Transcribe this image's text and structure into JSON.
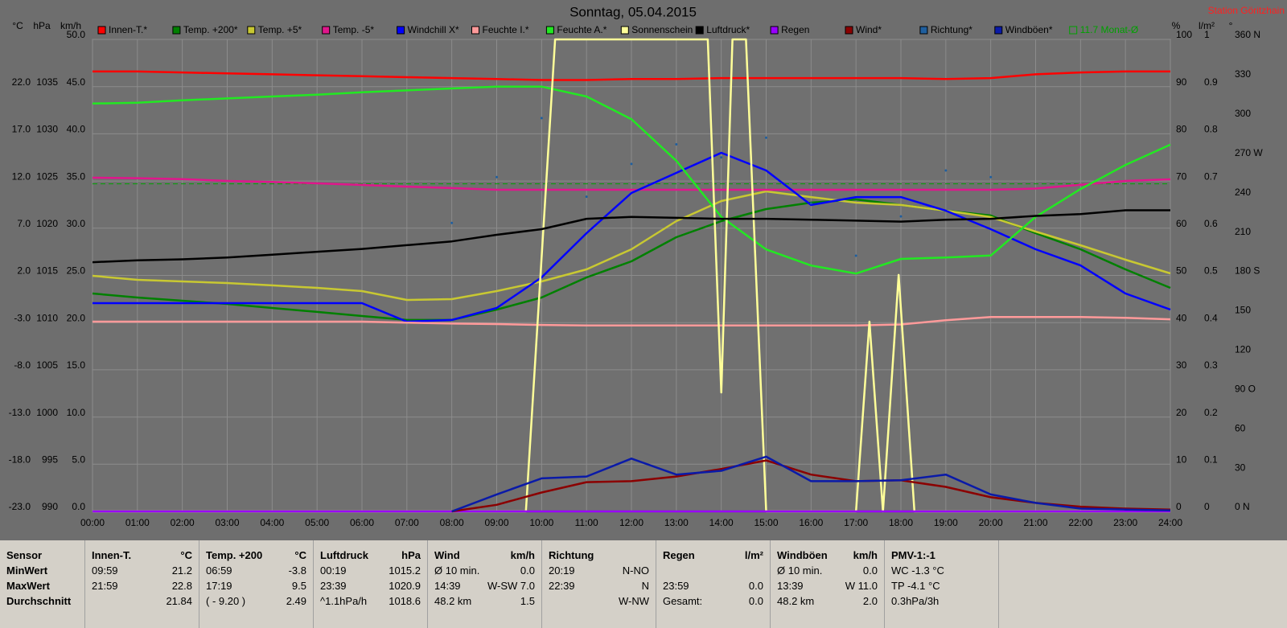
{
  "chart_data": {
    "type": "line",
    "title": "Sonntag, 05.04.2015",
    "station": "Station Göritzhain",
    "grid": true,
    "x": [
      0,
      1,
      2,
      3,
      4,
      5,
      6,
      7,
      8,
      9,
      10,
      11,
      12,
      13,
      14,
      15,
      16,
      17,
      18,
      19,
      20,
      21,
      22,
      23,
      24
    ],
    "xlim": [
      0,
      24
    ],
    "xticks": [
      {
        "value": 0,
        "label": "00:00"
      },
      {
        "value": 1,
        "label": "01:00"
      },
      {
        "value": 2,
        "label": "02:00"
      },
      {
        "value": 3,
        "label": "03:00"
      },
      {
        "value": 4,
        "label": "04:00"
      },
      {
        "value": 5,
        "label": "05:00"
      },
      {
        "value": 6,
        "label": "06:00"
      },
      {
        "value": 7,
        "label": "07:00"
      },
      {
        "value": 8,
        "label": "08:00"
      },
      {
        "value": 9,
        "label": "09:00"
      },
      {
        "value": 10,
        "label": "10:00"
      },
      {
        "value": 11,
        "label": "11:00"
      },
      {
        "value": 12,
        "label": "12:00"
      },
      {
        "value": 13,
        "label": "13:00"
      },
      {
        "value": 14,
        "label": "14:00"
      },
      {
        "value": 15,
        "label": "15:00"
      },
      {
        "value": 16,
        "label": "16:00"
      },
      {
        "value": 17,
        "label": "17:00"
      },
      {
        "value": 18,
        "label": "18:00"
      },
      {
        "value": 19,
        "label": "19:00"
      },
      {
        "value": 20,
        "label": "20:00"
      },
      {
        "value": 21,
        "label": "21:00"
      },
      {
        "value": 22,
        "label": "22:00"
      },
      {
        "value": 23,
        "label": "23:00"
      },
      {
        "value": 24,
        "label": "24:00"
      }
    ],
    "axes": [
      {
        "unit": "°C",
        "ylim": [
          -23,
          27
        ],
        "yticks": [
          {
            "value": -23,
            "label": "-23.0"
          },
          {
            "value": -18,
            "label": "-18.0"
          },
          {
            "value": -13,
            "label": "-13.0"
          },
          {
            "value": -8,
            "label": "-8.0"
          },
          {
            "value": -3,
            "label": "-3.0"
          },
          {
            "value": 2,
            "label": "2.0"
          },
          {
            "value": 7,
            "label": "7.0"
          },
          {
            "value": 12,
            "label": "12.0"
          },
          {
            "value": 17,
            "label": "17.0"
          },
          {
            "value": 22,
            "label": "22.0"
          }
        ]
      },
      {
        "unit": "hPa",
        "ylim": [
          990,
          1040
        ],
        "yticks": [
          990,
          995,
          1000,
          1005,
          1010,
          1015,
          1020,
          1025,
          1030,
          1035
        ]
      },
      {
        "unit": "km/h",
        "ylim": [
          0,
          50
        ],
        "yticks": [
          {
            "value": 0,
            "label": "0.0"
          },
          {
            "value": 5,
            "label": "5.0"
          },
          {
            "value": 10,
            "label": "10.0"
          },
          {
            "value": 15,
            "label": "15.0"
          },
          {
            "value": 20,
            "label": "20.0"
          },
          {
            "value": 25,
            "label": "25.0"
          },
          {
            "value": 30,
            "label": "30.0"
          },
          {
            "value": 35,
            "label": "35.0"
          },
          {
            "value": 40,
            "label": "40.0"
          },
          {
            "value": 45,
            "label": "45.0"
          },
          {
            "value": 50,
            "label": "50.0"
          }
        ]
      },
      {
        "unit": "%",
        "ylim": [
          0,
          100
        ],
        "yticks": [
          0,
          10,
          20,
          30,
          40,
          50,
          60,
          70,
          80,
          90,
          100
        ]
      },
      {
        "unit": "l/m²",
        "ylim": [
          0,
          1
        ],
        "yticks": [
          0,
          0.1,
          0.2,
          0.3,
          0.4,
          0.5,
          0.6,
          0.7,
          0.8,
          0.9,
          1
        ]
      },
      {
        "unit": "°",
        "ylim": [
          0,
          360
        ],
        "yticks": [
          {
            "value": 0,
            "label": "0  N"
          },
          30,
          60,
          {
            "value": 90,
            "label": "90  O"
          },
          120,
          150,
          {
            "value": 180,
            "label": "180  S"
          },
          210,
          240,
          {
            "value": 270,
            "label": "270  W"
          },
          300,
          330,
          {
            "value": 360,
            "label": "360  N"
          }
        ]
      }
    ],
    "series": [
      {
        "name": "Innen-T.*",
        "color": "#ff0000",
        "axis": 0,
        "values": [
          23.6,
          23.6,
          23.5,
          23.4,
          23.3,
          23.2,
          23.1,
          23.0,
          22.9,
          22.8,
          22.7,
          22.7,
          22.8,
          22.8,
          22.9,
          22.9,
          22.9,
          22.9,
          22.9,
          22.8,
          22.9,
          23.3,
          23.5,
          23.6,
          23.6
        ]
      },
      {
        "name": "Temp. +200*",
        "color": "#008000",
        "axis": 0,
        "values": [
          0.08,
          -0.34,
          -0.68,
          -1.02,
          -1.45,
          -1.87,
          -2.3,
          -2.72,
          -2.72,
          -1.62,
          -0.34,
          1.79,
          3.49,
          6.05,
          7.75,
          9.03,
          9.71,
          10.05,
          9.46,
          8.86,
          8.35,
          6.47,
          4.77,
          2.64,
          0.68
        ]
      },
      {
        "name": "Temp. +5*",
        "color": "#c8c832",
        "axis": 0,
        "values": [
          1.96,
          1.53,
          1.36,
          1.19,
          0.94,
          0.68,
          0.34,
          -0.6,
          -0.51,
          0.34,
          1.36,
          2.64,
          4.77,
          7.75,
          9.88,
          10.9,
          10.3,
          9.71,
          9.46,
          8.86,
          8.18,
          6.64,
          5.19,
          3.66,
          2.21
        ]
      },
      {
        "name": "Temp. -5*",
        "color": "#e0168c",
        "axis": 0,
        "values": [
          12.35,
          12.3,
          12.2,
          12.01,
          11.9,
          11.75,
          11.58,
          11.4,
          11.25,
          11.07,
          11.07,
          11.07,
          11.07,
          11.07,
          11.07,
          11.07,
          11.07,
          11.07,
          11.07,
          11.07,
          11.07,
          11.2,
          11.6,
          12.01,
          12.18
        ]
      },
      {
        "name": "Windchill X*",
        "color": "#0000ff",
        "axis": 0,
        "values": [
          -0.94,
          -0.94,
          -0.94,
          -0.94,
          -0.94,
          -0.94,
          -0.94,
          -2.9,
          -2.72,
          -1.45,
          1.79,
          6.47,
          10.73,
          12.86,
          14.99,
          13.12,
          9.46,
          10.3,
          10.3,
          8.86,
          6.9,
          4.77,
          3.06,
          0.08,
          -1.62
        ]
      },
      {
        "name": "Feuchte I.*",
        "color": "#ff9a9a",
        "axis": 3,
        "values": [
          40.2,
          40.2,
          40.2,
          40.2,
          40.2,
          40.2,
          40.2,
          40.0,
          39.8,
          39.7,
          39.5,
          39.4,
          39.4,
          39.4,
          39.4,
          39.4,
          39.4,
          39.4,
          39.6,
          40.5,
          41.2,
          41.2,
          41.2,
          41.0,
          40.7
        ]
      },
      {
        "name": "Feuchte A.*",
        "color": "#22e822",
        "axis": 3,
        "values": [
          86.4,
          86.6,
          87.1,
          87.5,
          87.9,
          88.3,
          88.8,
          89.2,
          89.6,
          90.0,
          90.0,
          87.9,
          83.1,
          74.3,
          62.4,
          55.5,
          52.1,
          50.4,
          53.5,
          53.8,
          54.2,
          62.4,
          68.3,
          73.4,
          77.7
        ]
      },
      {
        "name": "Sonnenschein",
        "color": "#ffff99",
        "axis": 3,
        "x": [
          0,
          9.65,
          10.3,
          13.7,
          14.0,
          14.25,
          14.55,
          15.0,
          17.0,
          17.3,
          17.6,
          17.95,
          18.3,
          24
        ],
        "values": [
          0,
          0,
          100,
          100,
          25.2,
          100,
          100,
          0,
          0,
          40.2,
          0,
          50.1,
          0,
          0
        ]
      },
      {
        "name": "Luftdruck*",
        "color": "#000000",
        "axis": 1,
        "values": [
          1016.4,
          1016.6,
          1016.7,
          1016.9,
          1017.2,
          1017.5,
          1017.8,
          1018.2,
          1018.6,
          1019.3,
          1019.9,
          1021.0,
          1021.2,
          1021.1,
          1021.0,
          1021.0,
          1020.9,
          1020.8,
          1020.7,
          1020.9,
          1021.0,
          1021.3,
          1021.5,
          1021.9,
          1021.9
        ]
      },
      {
        "name": "Regen",
        "color": "#9900ff",
        "axis": 4,
        "values": [
          0,
          0,
          0,
          0,
          0,
          0,
          0,
          0,
          0,
          0,
          0,
          0,
          0,
          0,
          0,
          0,
          0,
          0,
          0,
          0,
          0,
          0,
          0,
          0,
          0
        ]
      },
      {
        "name": "Wind*",
        "color": "#8b0000",
        "axis": 2,
        "values": [
          null,
          null,
          null,
          null,
          null,
          null,
          null,
          null,
          0,
          0.7,
          2.0,
          3.1,
          3.2,
          3.7,
          4.5,
          5.4,
          3.9,
          3.2,
          3.3,
          2.6,
          1.5,
          0.9,
          0.5,
          0.3,
          0.2
        ]
      },
      {
        "name": "Richtung*",
        "color": "#1f5f9f",
        "axis": 5,
        "marker": "points",
        "values": [
          null,
          null,
          null,
          null,
          null,
          null,
          null,
          null,
          220,
          255,
          300,
          240,
          265,
          280,
          270,
          285,
          235,
          195,
          225,
          260,
          255,
          null,
          null,
          null,
          null
        ]
      },
      {
        "name": "Windböen*",
        "color": "#0a1aa8",
        "axis": 2,
        "values": [
          null,
          null,
          null,
          null,
          null,
          null,
          null,
          null,
          0,
          1.8,
          3.5,
          3.7,
          5.6,
          3.9,
          4.3,
          5.8,
          3.2,
          3.2,
          3.3,
          3.9,
          1.8,
          0.9,
          0.3,
          0.2,
          0.1
        ]
      }
    ],
    "reference_lines": [
      {
        "name": "11.7 Monat-Ø",
        "value": 11.7,
        "axis": 0,
        "color": "#00a000"
      }
    ]
  },
  "table": {
    "row_labels": [
      "Sensor",
      "MinWert",
      "MaxWert",
      "Durchschnitt"
    ],
    "columns": [
      {
        "header": "Innen-T.",
        "unit": "°C",
        "rows": [
          [
            "09:59",
            "21.2"
          ],
          [
            "21:59",
            "22.8"
          ],
          [
            null,
            "21.84"
          ]
        ]
      },
      {
        "header": "Temp. +200",
        "unit": "°C",
        "rows": [
          [
            "06:59",
            "-3.8"
          ],
          [
            "17:19",
            "9.5"
          ],
          [
            "( - 9.20 )",
            "2.49"
          ]
        ]
      },
      {
        "header": "Luftdruck",
        "unit": "hPa",
        "rows": [
          [
            "00:19",
            "1015.2"
          ],
          [
            "23:39",
            "1020.9"
          ],
          [
            "^1.1hPa/h",
            "1018.6"
          ]
        ]
      },
      {
        "header": "Wind",
        "unit": "km/h",
        "rows": [
          [
            "Ø 10 min.",
            "0.0"
          ],
          [
            "14:39",
            "W-SW 7.0"
          ],
          [
            "48.2 km",
            "1.5"
          ]
        ]
      },
      {
        "header": "Richtung",
        "rows": [
          [
            "20:19",
            "N-NO"
          ],
          [
            "22:39",
            "N"
          ],
          [
            null,
            "W-NW"
          ]
        ]
      },
      {
        "header": "Regen",
        "unit": "l/m²",
        "rows": [
          [
            null,
            null
          ],
          [
            "23:59",
            "0.0"
          ],
          [
            "Gesamt:",
            "0.0"
          ]
        ]
      },
      {
        "header": "Windböen",
        "unit": "km/h",
        "rows": [
          [
            "Ø 10 min.",
            "0.0"
          ],
          [
            "13:39",
            "W 11.0"
          ],
          [
            "48.2 km",
            "2.0"
          ]
        ]
      },
      {
        "header": "PMV-1:-1",
        "rows": [
          [
            "WC -1.3 °C"
          ],
          [
            "TP -4.1 °C"
          ],
          [
            "0.3hPa/3h"
          ]
        ]
      }
    ]
  }
}
